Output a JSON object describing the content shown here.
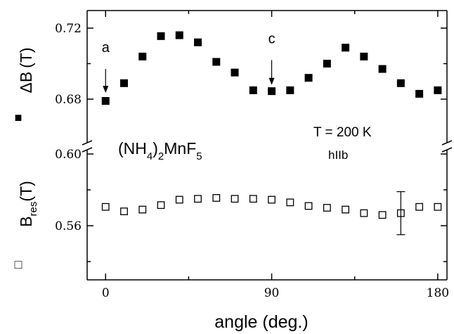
{
  "chart_data": {
    "type": "scatter",
    "xlabel": "angle (deg.)",
    "x_ticks": [
      0,
      90,
      180
    ],
    "xlim": [
      -10,
      185
    ],
    "upper_panel": {
      "ylabel_main": "ΔB",
      "ylabel_unit": "(T)",
      "y_ticks": [
        0.68,
        0.72
      ],
      "y_tick_labels": [
        "0.68",
        "0.72"
      ],
      "ylim": [
        0.66,
        0.73
      ]
    },
    "lower_panel": {
      "ylabel_main": "B",
      "ylabel_sub": "res",
      "ylabel_unit": "(T)",
      "y_ticks": [
        0.56,
        0.6
      ],
      "y_tick_labels": [
        "0.56",
        "0.60"
      ],
      "ylim": [
        0.53,
        0.603
      ]
    },
    "series": [
      {
        "marker": "filled-square",
        "panel": "upper",
        "x": [
          0,
          10,
          20,
          30,
          40,
          50,
          60,
          70,
          80,
          90,
          100,
          110,
          120,
          130,
          140,
          150,
          160,
          170,
          180
        ],
        "y": [
          0.679,
          0.689,
          0.704,
          0.7155,
          0.716,
          0.712,
          0.701,
          0.695,
          0.685,
          0.6845,
          0.685,
          0.692,
          0.7,
          0.709,
          0.704,
          0.697,
          0.689,
          0.683,
          0.685
        ]
      },
      {
        "marker": "open-square",
        "panel": "lower",
        "x": [
          0,
          10,
          20,
          30,
          40,
          50,
          60,
          70,
          80,
          90,
          100,
          110,
          120,
          130,
          140,
          150,
          160,
          170,
          180
        ],
        "y": [
          0.5705,
          0.568,
          0.569,
          0.5715,
          0.5745,
          0.575,
          0.5755,
          0.575,
          0.575,
          0.5745,
          0.573,
          0.571,
          0.57,
          0.569,
          0.567,
          0.566,
          0.567,
          0.5705,
          0.5705
        ]
      }
    ],
    "error_bar": {
      "x": 160,
      "y_low": 0.555,
      "y_high": 0.579
    },
    "annotations": [
      {
        "text": "a",
        "x": 0,
        "arrow_to_y": 0.6835,
        "arrow_from_y": 0.697
      },
      {
        "text": "c",
        "x": 90,
        "arrow_to_y": 0.688,
        "arrow_from_y": 0.702
      }
    ],
    "panel_text": {
      "compound_parts": [
        "(NH",
        "4",
        ")",
        "2",
        "MnF",
        "5"
      ],
      "temperature": "T = 200 K",
      "orientation": "hIIb"
    },
    "legend": {
      "upper_marker": "■",
      "lower_marker": "□"
    }
  }
}
